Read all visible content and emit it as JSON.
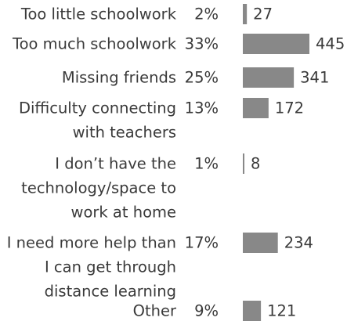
{
  "chart_data": {
    "type": "bar",
    "orientation": "horizontal",
    "bar_color": "#888888",
    "categories": [
      "Too little schoolwork",
      "Too much schoolwork",
      "Missing friends",
      "Difficulty connecting with teachers",
      "I don’t have the technology/space to work at home",
      "I need more help than I can get through distance learning",
      "Other"
    ],
    "category_lines": [
      [
        "Too little schoolwork"
      ],
      [
        "Too much schoolwork"
      ],
      [
        "Missing friends"
      ],
      [
        "Difficulty connecting",
        "with teachers"
      ],
      [
        "I don’t have the",
        "technology/space to",
        "work at home"
      ],
      [
        "I need more help than",
        "I can get through",
        "distance learning"
      ],
      [
        "Other"
      ]
    ],
    "percent_labels": [
      "2%",
      "33%",
      "25%",
      "13%",
      "1%",
      "17%",
      "9%"
    ],
    "values": [
      27,
      445,
      341,
      172,
      8,
      234,
      121
    ],
    "value_labels": [
      "27",
      "445",
      "341",
      "172",
      "8",
      "234",
      "121"
    ],
    "xlim": [
      0,
      445
    ],
    "grid": false,
    "legend": "none"
  }
}
